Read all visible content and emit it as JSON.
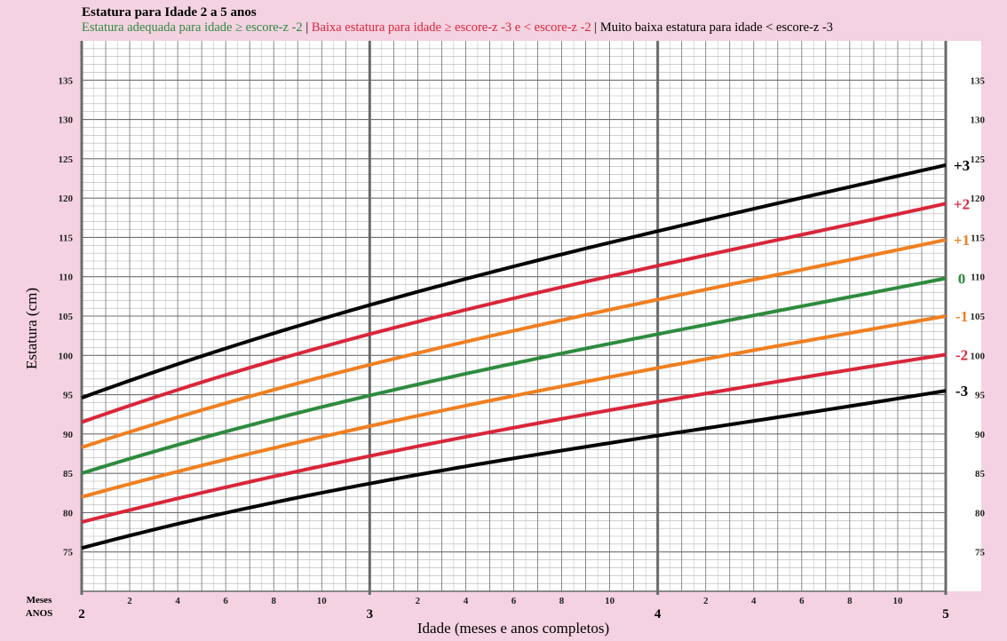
{
  "chart_data": {
    "type": "line",
    "title": "Estatura para Idade 2 a 5 anos",
    "subtitle": {
      "green": "Estatura adequada para idade ≥ escore-z -2",
      "separator": " | ",
      "red": "Baixa estatura para idade ≥ escore-z -3 e < escore-z -2",
      "black": "Muito baixa estatura para idade < escore-z -3"
    },
    "xlabel": "Idade (meses e anos completos)",
    "ylabel": "Estatura (cm)",
    "x_unit": "months",
    "xlim": [
      24,
      60
    ],
    "ylim": [
      70,
      140
    ],
    "grid": true,
    "y_ticks": [
      75,
      80,
      85,
      90,
      95,
      100,
      105,
      110,
      115,
      120,
      125,
      130,
      135
    ],
    "x_row_labels": {
      "months": "Meses",
      "years": "ANOS"
    },
    "year_ticks": [
      {
        "x": 24,
        "label": "2"
      },
      {
        "x": 36,
        "label": "3"
      },
      {
        "x": 48,
        "label": "4"
      },
      {
        "x": 60,
        "label": "5"
      }
    ],
    "month_ticks": [
      "2",
      "4",
      "6",
      "8",
      "10"
    ],
    "colors": {
      "black": "#000000",
      "red": "#d9263a",
      "orange": "#f07f20",
      "green": "#2e8b3e",
      "grid_major": "#6e6e6e",
      "grid_minor": "#b4b4b4"
    },
    "series": [
      {
        "label": "+3",
        "color": "#000000",
        "x": [
          24,
          36,
          48,
          60
        ],
        "y": [
          94.6,
          106.4,
          115.8,
          124.2
        ]
      },
      {
        "label": "+2",
        "color": "#d9263a",
        "x": [
          24,
          36,
          48,
          60
        ],
        "y": [
          91.5,
          102.7,
          111.4,
          119.3
        ]
      },
      {
        "label": "+1",
        "color": "#f07f20",
        "x": [
          24,
          36,
          48,
          60
        ],
        "y": [
          88.3,
          98.8,
          107.1,
          114.7
        ]
      },
      {
        "label": "0",
        "color": "#2e8b3e",
        "x": [
          24,
          36,
          48,
          60
        ],
        "y": [
          85.0,
          94.9,
          102.7,
          109.8
        ]
      },
      {
        "label": "-1",
        "color": "#f07f20",
        "x": [
          24,
          36,
          48,
          60
        ],
        "y": [
          82.0,
          91.0,
          98.4,
          105.0
        ]
      },
      {
        "label": "-2",
        "color": "#d9263a",
        "x": [
          24,
          36,
          48,
          60
        ],
        "y": [
          78.8,
          87.2,
          94.1,
          100.1
        ]
      },
      {
        "label": "-3",
        "color": "#000000",
        "x": [
          24,
          36,
          48,
          60
        ],
        "y": [
          75.5,
          83.7,
          89.8,
          95.5
        ]
      }
    ]
  }
}
